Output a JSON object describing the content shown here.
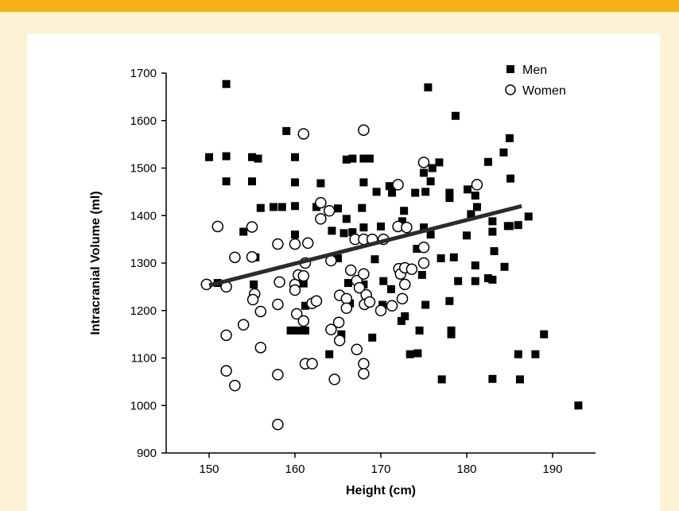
{
  "chart_data": {
    "type": "scatter",
    "title": "",
    "xlabel": "Height (cm)",
    "ylabel": "Intracranial Volume (ml)",
    "xlim": [
      145,
      195
    ],
    "ylim": [
      900,
      1700
    ],
    "xticks": [
      150,
      160,
      170,
      180,
      190
    ],
    "yticks": [
      900,
      1000,
      1100,
      1200,
      1300,
      1400,
      1500,
      1600,
      1700
    ],
    "grid": false,
    "legend_position": "top-right",
    "series": [
      {
        "name": "Men",
        "marker": "filled-square",
        "color": "#000000",
        "points": [
          [
            152,
            1677
          ],
          [
            175.5,
            1670
          ],
          [
            178.7,
            1610
          ],
          [
            185,
            1563
          ],
          [
            184.3,
            1533
          ],
          [
            150,
            1523
          ],
          [
            152,
            1525
          ],
          [
            155,
            1523
          ],
          [
            155.7,
            1520
          ],
          [
            160,
            1523
          ],
          [
            159,
            1578
          ],
          [
            166,
            1518
          ],
          [
            166.7,
            1520
          ],
          [
            168,
            1520
          ],
          [
            168.7,
            1520
          ],
          [
            176.8,
            1512
          ],
          [
            182.5,
            1513
          ],
          [
            175,
            1490
          ],
          [
            185.1,
            1478
          ],
          [
            152,
            1472
          ],
          [
            155,
            1472
          ],
          [
            160,
            1470
          ],
          [
            163,
            1468
          ],
          [
            168,
            1470
          ],
          [
            171,
            1462
          ],
          [
            175.8,
            1472
          ],
          [
            178,
            1448
          ],
          [
            180.1,
            1455
          ],
          [
            181,
            1442
          ],
          [
            156,
            1416
          ],
          [
            157.5,
            1418
          ],
          [
            158.5,
            1418
          ],
          [
            160,
            1420
          ],
          [
            162.5,
            1418
          ],
          [
            165,
            1415
          ],
          [
            167.8,
            1416
          ],
          [
            169.5,
            1450
          ],
          [
            171.3,
            1448
          ],
          [
            174,
            1448
          ],
          [
            175.2,
            1450
          ],
          [
            178,
            1437
          ],
          [
            183,
            1388
          ],
          [
            187.2,
            1398
          ],
          [
            180.5,
            1403
          ],
          [
            181.2,
            1418
          ],
          [
            154,
            1366
          ],
          [
            160,
            1360
          ],
          [
            164.3,
            1368
          ],
          [
            165.7,
            1363
          ],
          [
            166.7,
            1365
          ],
          [
            168,
            1375
          ],
          [
            170,
            1377
          ],
          [
            172.5,
            1388
          ],
          [
            175,
            1375
          ],
          [
            175.8,
            1360
          ],
          [
            184.8,
            1378
          ],
          [
            180,
            1358
          ],
          [
            183,
            1366
          ],
          [
            185,
            1378
          ],
          [
            166,
            1393
          ],
          [
            172.7,
            1410
          ],
          [
            155.4,
            1312
          ],
          [
            165,
            1310
          ],
          [
            169.3,
            1308
          ],
          [
            174.2,
            1330
          ],
          [
            177,
            1310
          ],
          [
            178.5,
            1312
          ],
          [
            183.2,
            1325
          ],
          [
            186,
            1380
          ],
          [
            181,
            1295
          ],
          [
            184.4,
            1292
          ],
          [
            151,
            1258
          ],
          [
            155.2,
            1255
          ],
          [
            161,
            1257
          ],
          [
            166.2,
            1258
          ],
          [
            168,
            1255
          ],
          [
            170.3,
            1262
          ],
          [
            171.2,
            1245
          ],
          [
            174.8,
            1275
          ],
          [
            179,
            1262
          ],
          [
            181,
            1262
          ],
          [
            183,
            1265
          ],
          [
            164,
            1108
          ],
          [
            165.4,
            1150
          ],
          [
            166.4,
            1215
          ],
          [
            159.5,
            1158
          ],
          [
            160.4,
            1158
          ],
          [
            161.2,
            1158
          ],
          [
            161.2,
            1210
          ],
          [
            170.2,
            1212
          ],
          [
            172.4,
            1178
          ],
          [
            173.4,
            1108
          ],
          [
            174.5,
            1158
          ],
          [
            174.3,
            1110
          ],
          [
            175.2,
            1212
          ],
          [
            178,
            1220
          ],
          [
            178.2,
            1150
          ],
          [
            178.2,
            1158
          ],
          [
            177.1,
            1055
          ],
          [
            169,
            1143
          ],
          [
            183,
            1056
          ],
          [
            186,
            1108
          ],
          [
            186.2,
            1055
          ],
          [
            188,
            1108
          ],
          [
            189,
            1150
          ],
          [
            193,
            1000
          ],
          [
            172.8,
            1188
          ],
          [
            182.5,
            1268
          ],
          [
            176,
            1500
          ]
        ]
      },
      {
        "name": "Women",
        "marker": "open-circle",
        "color": "#000000",
        "points": [
          [
            149.7,
            1255
          ],
          [
            151,
            1377
          ],
          [
            152,
            1250
          ],
          [
            153,
            1312
          ],
          [
            152,
            1148
          ],
          [
            152,
            1073
          ],
          [
            153,
            1042
          ],
          [
            154,
            1170
          ],
          [
            155,
            1376
          ],
          [
            155,
            1313
          ],
          [
            155.3,
            1235
          ],
          [
            155.1,
            1223
          ],
          [
            156,
            1198
          ],
          [
            156,
            1122
          ],
          [
            158,
            1340
          ],
          [
            158.2,
            1260
          ],
          [
            158,
            1213
          ],
          [
            158,
            1065
          ],
          [
            158,
            960
          ],
          [
            160,
            1340
          ],
          [
            160,
            1255
          ],
          [
            160,
            1243
          ],
          [
            160.4,
            1275
          ],
          [
            160.2,
            1193
          ],
          [
            161.2,
            1300
          ],
          [
            161,
            1273
          ],
          [
            161,
            1178
          ],
          [
            161.2,
            1088
          ],
          [
            161,
            1572
          ],
          [
            161.5,
            1342
          ],
          [
            162,
            1215
          ],
          [
            162.5,
            1220
          ],
          [
            162,
            1088
          ],
          [
            163,
            1427
          ],
          [
            163,
            1393
          ],
          [
            164,
            1410
          ],
          [
            164.2,
            1305
          ],
          [
            164.2,
            1160
          ],
          [
            164.6,
            1055
          ],
          [
            165.2,
            1232
          ],
          [
            165.1,
            1175
          ],
          [
            165.2,
            1137
          ],
          [
            166,
            1225
          ],
          [
            166,
            1205
          ],
          [
            166.5,
            1285
          ],
          [
            167,
            1350
          ],
          [
            167.2,
            1263
          ],
          [
            167.5,
            1248
          ],
          [
            167.2,
            1118
          ],
          [
            168,
            1580
          ],
          [
            168,
            1350
          ],
          [
            168,
            1277
          ],
          [
            168.3,
            1233
          ],
          [
            168.1,
            1213
          ],
          [
            168,
            1088
          ],
          [
            168,
            1067
          ],
          [
            168.7,
            1218
          ],
          [
            169,
            1350
          ],
          [
            170,
            1200
          ],
          [
            170.3,
            1350
          ],
          [
            171.3,
            1210
          ],
          [
            172,
            1465
          ],
          [
            172,
            1377
          ],
          [
            172.1,
            1288
          ],
          [
            172.3,
            1277
          ],
          [
            172.5,
            1225
          ],
          [
            172.8,
            1290
          ],
          [
            172.8,
            1255
          ],
          [
            173,
            1375
          ],
          [
            173.6,
            1287
          ],
          [
            175,
            1512
          ],
          [
            175,
            1333
          ],
          [
            175,
            1300
          ],
          [
            181.2,
            1465
          ]
        ]
      }
    ],
    "trendline": {
      "from": [
        150,
        1253
      ],
      "to": [
        186.4,
        1420
      ]
    }
  }
}
